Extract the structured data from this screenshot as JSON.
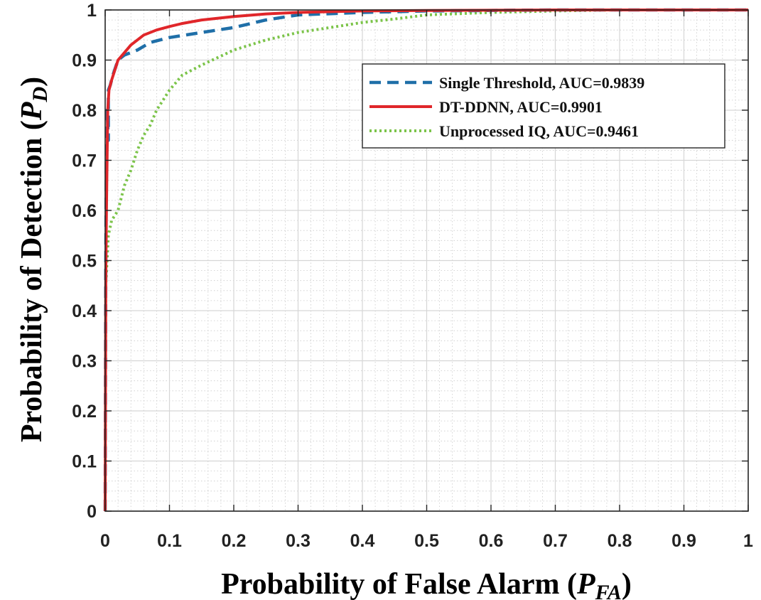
{
  "chart_data": {
    "type": "line",
    "title": "",
    "xlabel": "Probability of False Alarm (",
    "xlabel_symbol": "P",
    "xlabel_sub": "FA",
    "xlabel_close": ")",
    "ylabel": "Probability of Detection (",
    "ylabel_symbol": "P",
    "ylabel_sub": "D",
    "ylabel_close": ")",
    "xlim": [
      0,
      1
    ],
    "ylim": [
      0,
      1
    ],
    "xticks": [
      0,
      0.1,
      0.2,
      0.3,
      0.4,
      0.5,
      0.6,
      0.7,
      0.8,
      0.9,
      1
    ],
    "yticks": [
      0,
      0.1,
      0.2,
      0.3,
      0.4,
      0.5,
      0.6,
      0.7,
      0.8,
      0.9,
      1
    ],
    "xtick_labels": [
      "0",
      "0.1",
      "0.2",
      "0.3",
      "0.4",
      "0.5",
      "0.6",
      "0.7",
      "0.8",
      "0.9",
      "1"
    ],
    "ytick_labels": [
      "0",
      "0.1",
      "0.2",
      "0.3",
      "0.4",
      "0.5",
      "0.6",
      "0.7",
      "0.8",
      "0.9",
      "1"
    ],
    "grid": true,
    "minor_grid": true,
    "legend_position": "top-right",
    "series": [
      {
        "name": "Single Threshold, AUC=0.9839",
        "color": "#1f6fa8",
        "style": "dashed",
        "x": [
          0,
          0.001,
          0.002,
          0.003,
          0.005,
          0.005,
          0.008,
          0.012,
          0.02,
          0.03,
          0.05,
          0.07,
          0.1,
          0.15,
          0.2,
          0.25,
          0.3,
          0.4,
          0.5,
          0.7,
          1.0
        ],
        "y": [
          0,
          0.5,
          0.72,
          0.8,
          0.74,
          0.84,
          0.85,
          0.87,
          0.9,
          0.91,
          0.92,
          0.935,
          0.945,
          0.955,
          0.965,
          0.98,
          0.99,
          0.995,
          0.998,
          1.0,
          1.0
        ]
      },
      {
        "name": "DT-DDNN, AUC=0.9901",
        "color": "#e0262a",
        "style": "solid",
        "x": [
          0,
          0.001,
          0.002,
          0.003,
          0.004,
          0.006,
          0.01,
          0.015,
          0.02,
          0.03,
          0.04,
          0.06,
          0.08,
          0.1,
          0.12,
          0.15,
          0.2,
          0.25,
          0.3,
          0.4,
          0.5,
          0.7,
          1.0
        ],
        "y": [
          0,
          0.47,
          0.6,
          0.7,
          0.8,
          0.84,
          0.86,
          0.88,
          0.9,
          0.915,
          0.93,
          0.95,
          0.96,
          0.967,
          0.973,
          0.98,
          0.987,
          0.992,
          0.995,
          0.998,
          0.999,
          1.0,
          1.0
        ]
      },
      {
        "name": "Unprocessed IQ, AUC=0.9461",
        "color": "#7cc44a",
        "style": "dotted",
        "x": [
          0,
          0.001,
          0.003,
          0.005,
          0.01,
          0.02,
          0.03,
          0.04,
          0.05,
          0.06,
          0.07,
          0.08,
          0.1,
          0.12,
          0.15,
          0.2,
          0.25,
          0.3,
          0.35,
          0.4,
          0.45,
          0.5,
          0.6,
          0.7,
          0.8,
          1.0
        ],
        "y": [
          0,
          0.45,
          0.5,
          0.55,
          0.58,
          0.6,
          0.65,
          0.68,
          0.72,
          0.75,
          0.77,
          0.8,
          0.84,
          0.87,
          0.89,
          0.92,
          0.94,
          0.955,
          0.965,
          0.975,
          0.982,
          0.99,
          0.995,
          0.998,
          1.0,
          1.0
        ]
      }
    ]
  }
}
